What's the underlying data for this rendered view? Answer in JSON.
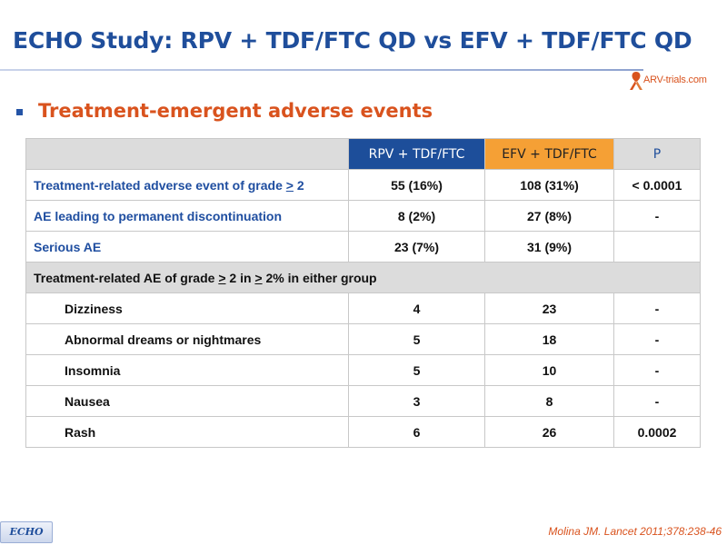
{
  "slide": {
    "title": "ECHO Study: RPV + TDF/FTC QD vs EFV + TDF/FTC QD",
    "subtitle": "Treatment-emergent adverse events",
    "logo_text": "ARV-trials.com",
    "badge": "ECHO",
    "citation": "Molina JM. Lancet 2011;378:238-46"
  },
  "colors": {
    "title_blue": "#1f4e9b",
    "accent_orange": "#d9531e",
    "rpv_header": "#1d4e9a",
    "efv_header": "#f5a035",
    "grey_header": "#dcdcdc"
  },
  "table": {
    "headers": {
      "col1": "",
      "rpv": "RPV + TDF/FTC",
      "efv": "EFV + TDF/FTC",
      "p": "P"
    },
    "rows": [
      {
        "label_pre": "Treatment-related adverse event of grade ",
        "label_u": ">",
        "label_post": " 2",
        "rpv": "55 (16%)",
        "efv": "108 (31%)",
        "p": "< 0.0001"
      },
      {
        "label": "AE leading to permanent discontinuation",
        "rpv": "8 (2%)",
        "efv": "27 (8%)",
        "p": "-"
      },
      {
        "label": "Serious AE",
        "rpv": "23 (7%)",
        "efv": "31 (9%)",
        "p": ""
      }
    ],
    "section": {
      "pre": "Treatment-related AE of grade ",
      "u1": ">",
      "mid": " 2 in ",
      "u2": ">",
      "post": " 2% in either group"
    },
    "sub_rows": [
      {
        "label": "Dizziness",
        "rpv": "4",
        "efv": "23",
        "p": "-"
      },
      {
        "label": "Abnormal dreams or nightmares",
        "rpv": "5",
        "efv": "18",
        "p": "-"
      },
      {
        "label": "Insomnia",
        "rpv": "5",
        "efv": "10",
        "p": "-"
      },
      {
        "label": "Nausea",
        "rpv": "3",
        "efv": "8",
        "p": "-"
      },
      {
        "label": "Rash",
        "rpv": "6",
        "efv": "26",
        "p": "0.0002"
      }
    ]
  }
}
